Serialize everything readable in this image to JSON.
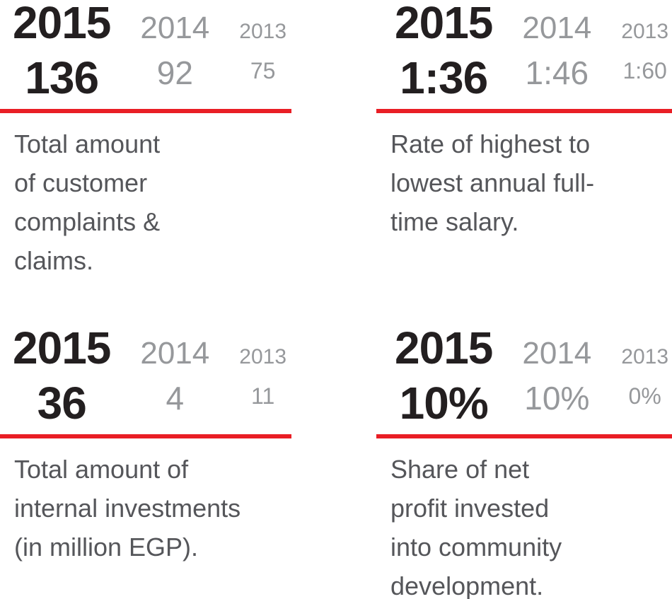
{
  "page": {
    "background": "#ffffff"
  },
  "styles": {
    "accent_red": "#e91e25",
    "primary_text_color": "#231f20",
    "secondary_text_color": "#96989b",
    "description_text_color": "#55565a"
  },
  "chart_data": [
    {
      "type": "table",
      "title": "Total amount\nof customer\ncomplaints &\nclaims.",
      "categories": [
        "2015",
        "2014",
        "2013"
      ],
      "values": [
        "136",
        "92",
        "75"
      ],
      "layout": "years as columns, current year emphasized, red divider below"
    },
    {
      "type": "table",
      "title": "Rate of highest to\nlowest annual full-\ntime salary.",
      "categories": [
        "2015",
        "2014",
        "2013"
      ],
      "values": [
        "1:36",
        "1:46",
        "1:60"
      ],
      "layout": "years as columns, current year emphasized, red divider below"
    },
    {
      "type": "table",
      "title": "Total amount of\ninternal investments\n(in million EGP).",
      "categories": [
        "2015",
        "2014",
        "2013"
      ],
      "values": [
        "36",
        "4",
        "11"
      ],
      "layout": "years as columns, current year emphasized, red divider below"
    },
    {
      "type": "table",
      "title": "Share of net\nprofit invested\ninto community\ndevelopment.",
      "categories": [
        "2015",
        "2014",
        "2013"
      ],
      "values": [
        "10%",
        "10%",
        "0%"
      ],
      "layout": "years as columns, current year emphasized, red divider below"
    }
  ]
}
